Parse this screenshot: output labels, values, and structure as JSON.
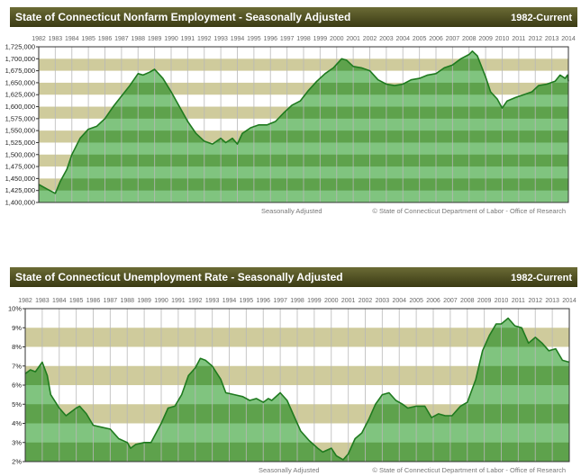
{
  "colors": {
    "header_top": "#6b6b35",
    "header_bottom": "#3a3a14",
    "band": "#cfcb9c",
    "area_light": "#80c47f",
    "area_dark": "#5ea24c",
    "line": "#1f7a1f",
    "grid": "#b8b8b8"
  },
  "chart_data": [
    {
      "type": "area",
      "title": "State of Connecticut Nonfarm Employment - Seasonally Adjusted",
      "range_label": "1982-Current",
      "footer_left": "Seasonally Adjusted",
      "footer_right": "© State of Connecticut Department of Labor - Office of Research",
      "years": [
        "1982",
        "1983",
        "1984",
        "1985",
        "1986",
        "1987",
        "1988",
        "1989",
        "1990",
        "1991",
        "1992",
        "1993",
        "1994",
        "1995",
        "1996",
        "1997",
        "1998",
        "1999",
        "2000",
        "2001",
        "2002",
        "2003",
        "2004",
        "2005",
        "2006",
        "2007",
        "2008",
        "2009",
        "2010",
        "2011",
        "2012",
        "2013",
        "2014"
      ],
      "xlim": [
        1982,
        2014
      ],
      "ylim": [
        1400000,
        1725000
      ],
      "ytick_step": 25000,
      "yticks": [
        "1,400,000",
        "1,425,000",
        "1,450,000",
        "1,475,000",
        "1,500,000",
        "1,525,000",
        "1,550,000",
        "1,575,000",
        "1,600,000",
        "1,625,000",
        "1,650,000",
        "1,675,000",
        "1,700,000",
        "1,725,000"
      ],
      "x": [
        1982.0,
        1982.5,
        1983.0,
        1983.3,
        1983.7,
        1984.0,
        1984.5,
        1985.0,
        1985.5,
        1986.0,
        1986.5,
        1987.0,
        1987.5,
        1988.0,
        1988.3,
        1988.7,
        1989.0,
        1989.5,
        1990.0,
        1990.5,
        1991.0,
        1991.5,
        1992.0,
        1992.5,
        1993.0,
        1993.3,
        1993.7,
        1994.0,
        1994.3,
        1994.8,
        1995.3,
        1995.8,
        1996.3,
        1996.8,
        1997.3,
        1997.8,
        1998.3,
        1998.8,
        1999.3,
        1999.8,
        2000.3,
        2000.6,
        2001.0,
        2001.5,
        2002.0,
        2002.5,
        2003.0,
        2003.5,
        2004.0,
        2004.5,
        2005.0,
        2005.5,
        2006.0,
        2006.5,
        2007.0,
        2007.5,
        2008.0,
        2008.2,
        2008.5,
        2009.0,
        2009.3,
        2009.7,
        2010.0,
        2010.3,
        2010.8,
        2011.3,
        2011.8,
        2012.2,
        2012.7,
        2013.2,
        2013.5,
        2013.8,
        2013.95,
        2014.0
      ],
      "values": [
        1437500,
        1428000,
        1419000,
        1444000,
        1469000,
        1500000,
        1534000,
        1553000,
        1559000,
        1575000,
        1600000,
        1622000,
        1644000,
        1669000,
        1666000,
        1672000,
        1678000,
        1659000,
        1631000,
        1600000,
        1569000,
        1544000,
        1528000,
        1522000,
        1534000,
        1525000,
        1534000,
        1522000,
        1544000,
        1556000,
        1562000,
        1562000,
        1569000,
        1587000,
        1603000,
        1612000,
        1634000,
        1653000,
        1669000,
        1681000,
        1700000,
        1697000,
        1684000,
        1681000,
        1675000,
        1656000,
        1647000,
        1644000,
        1647000,
        1656000,
        1659000,
        1666000,
        1669000,
        1681000,
        1687000,
        1700000,
        1709000,
        1716000,
        1706000,
        1662000,
        1631000,
        1616000,
        1597000,
        1612000,
        1619000,
        1625000,
        1631000,
        1644000,
        1647000,
        1653000,
        1666000,
        1659000,
        1666000,
        1653000
      ]
    },
    {
      "type": "area",
      "title": "State of Connecticut Unemployment Rate - Seasonally Adjusted",
      "range_label": "1982-Current",
      "footer_left": "Seasonally Adjusted",
      "footer_right": "© State of Connecticut Department of Labor - Office of Research",
      "years": [
        "1982",
        "1983",
        "1984",
        "1985",
        "1986",
        "1987",
        "1988",
        "1989",
        "1990",
        "1991",
        "1992",
        "1993",
        "1994",
        "1995",
        "1996",
        "1997",
        "1998",
        "1999",
        "2000",
        "2001",
        "2002",
        "2003",
        "2004",
        "2005",
        "2006",
        "2007",
        "2008",
        "2009",
        "2010",
        "2011",
        "2012",
        "2013",
        "2014"
      ],
      "xlim": [
        1982,
        2014
      ],
      "ylim": [
        2,
        10
      ],
      "ytick_step": 1,
      "yticks": [
        "2%",
        "3%",
        "4%",
        "5%",
        "6%",
        "7%",
        "8%",
        "9%",
        "10%"
      ],
      "x": [
        1982.0,
        1982.3,
        1982.6,
        1983.0,
        1983.3,
        1983.5,
        1984.0,
        1984.4,
        1985.0,
        1985.2,
        1985.6,
        1986.0,
        1986.5,
        1987.0,
        1987.5,
        1988.0,
        1988.2,
        1988.5,
        1989.0,
        1989.4,
        1990.0,
        1990.4,
        1990.8,
        1991.2,
        1991.6,
        1992.0,
        1992.3,
        1992.6,
        1993.0,
        1993.5,
        1993.8,
        1994.3,
        1994.8,
        1995.2,
        1995.6,
        1996.0,
        1996.3,
        1996.5,
        1997.0,
        1997.4,
        1997.8,
        1998.2,
        1998.7,
        1999.2,
        1999.5,
        2000.0,
        2000.3,
        2000.7,
        2001.0,
        2001.4,
        2001.8,
        2002.2,
        2002.6,
        2003.0,
        2003.4,
        2003.8,
        2004.2,
        2004.5,
        2005.0,
        2005.5,
        2005.9,
        2006.3,
        2006.7,
        2007.1,
        2007.6,
        2008.0,
        2008.5,
        2008.9,
        2009.3,
        2009.7,
        2010.0,
        2010.4,
        2010.8,
        2011.2,
        2011.6,
        2012.0,
        2012.4,
        2012.8,
        2013.2,
        2013.6,
        2014.0
      ],
      "values": [
        6.6,
        6.8,
        6.7,
        7.2,
        6.5,
        5.5,
        4.8,
        4.4,
        4.8,
        4.9,
        4.5,
        3.9,
        3.8,
        3.7,
        3.2,
        3.0,
        2.7,
        2.9,
        3.0,
        3.0,
        4.0,
        4.8,
        4.9,
        5.5,
        6.5,
        6.9,
        7.4,
        7.3,
        7.0,
        6.3,
        5.6,
        5.5,
        5.4,
        5.2,
        5.3,
        5.1,
        5.3,
        5.2,
        5.6,
        5.2,
        4.4,
        3.6,
        3.1,
        2.7,
        2.5,
        2.7,
        2.3,
        2.1,
        2.4,
        3.2,
        3.5,
        4.2,
        5.0,
        5.5,
        5.6,
        5.2,
        5.0,
        4.8,
        4.9,
        4.9,
        4.3,
        4.5,
        4.4,
        4.4,
        4.9,
        5.1,
        6.3,
        7.8,
        8.6,
        9.2,
        9.2,
        9.5,
        9.1,
        9.0,
        8.2,
        8.5,
        8.2,
        7.8,
        7.9,
        7.3,
        7.2
      ]
    }
  ]
}
